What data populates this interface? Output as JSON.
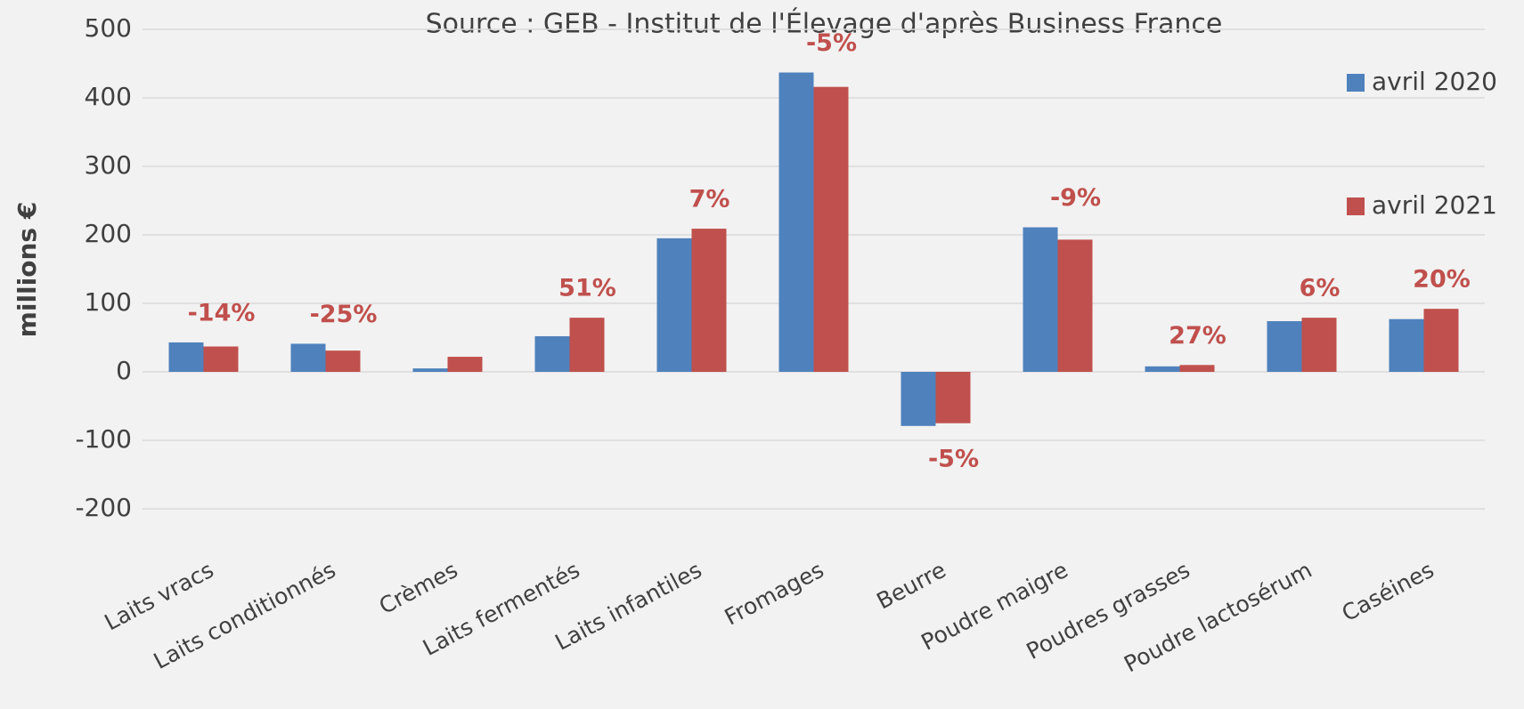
{
  "chart_data": {
    "type": "bar",
    "title": "Source : GEB - Institut de l'Élevage d'après Business France",
    "y_label": "millions €",
    "categories": [
      "Laits vracs",
      "Laits conditionnés",
      "Crèmes",
      "Laits fermentés",
      "Laits infantiles",
      "Fromages",
      "Beurre",
      "Poudre maigre",
      "Poudres grasses",
      "Poudre lactosérum",
      "Caséines"
    ],
    "series": [
      {
        "name": "avril 2020",
        "color": "#4f81bd",
        "values": [
          43,
          41,
          5,
          52,
          195,
          437,
          -79,
          211,
          8,
          74,
          77
        ]
      },
      {
        "name": "avril 2021",
        "color": "#c0504d",
        "values": [
          37,
          31,
          22,
          79,
          209,
          416,
          -75,
          193,
          10,
          79,
          92
        ]
      }
    ],
    "annotations": [
      "-14%",
      "-25%",
      null,
      "51%",
      "7%",
      "-5%",
      "-5%",
      "-9%",
      "27%",
      "6%",
      "20%"
    ],
    "ylim": [
      -200,
      500
    ],
    "yticks": [
      -200,
      -100,
      0,
      100,
      200,
      300,
      400,
      500
    ],
    "grid": true,
    "legend": "right"
  }
}
